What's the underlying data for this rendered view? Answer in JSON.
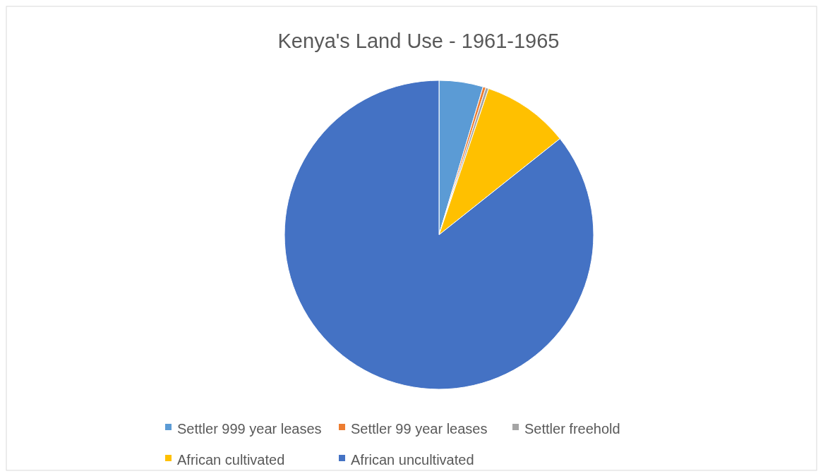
{
  "chart_data": {
    "type": "pie",
    "title": "Kenya's Land Use - 1961-1965",
    "categories": [
      "Settler 999 year leases",
      "Settler 99 year leases",
      "Settler freehold",
      "African cultivated",
      "African uncultivated"
    ],
    "values": [
      4.6,
      0.3,
      0.3,
      9.1,
      85.7
    ],
    "colors": [
      "#5b9bd5",
      "#ed7d31",
      "#a5a5a5",
      "#ffc000",
      "#4472c4"
    ],
    "legend": "bottom"
  }
}
